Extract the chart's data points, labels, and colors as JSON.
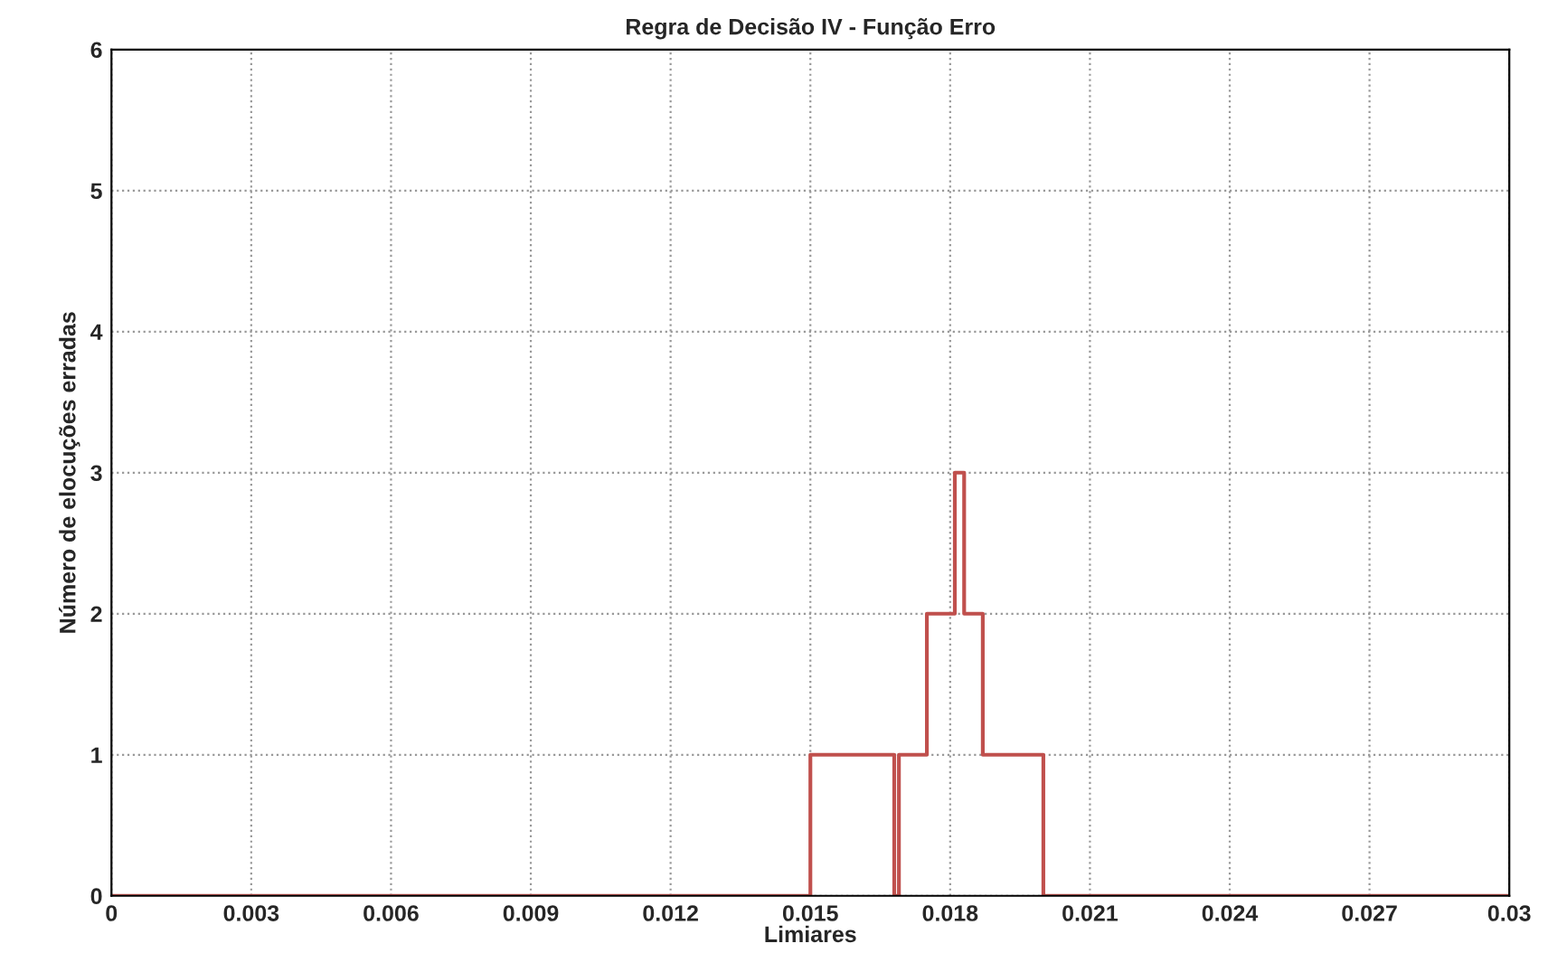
{
  "chart_data": {
    "type": "step",
    "title": "Regra de Decisão IV - Função Erro",
    "xlabel": "Limiares",
    "ylabel": "Número de elocuções erradas",
    "x": [
      0,
      0.015,
      0.0168,
      0.0169,
      0.0175,
      0.0181,
      0.0183,
      0.0187,
      0.02,
      0.03
    ],
    "series": [
      {
        "color": "#c0504d",
        "values": [
          0,
          1,
          0,
          1,
          2,
          3,
          2,
          1,
          0,
          0
        ]
      }
    ],
    "xlim": [
      0,
      0.03
    ],
    "xticks": [
      0,
      0.003,
      0.006,
      0.009,
      0.012,
      0.015,
      0.018,
      0.021,
      0.024,
      0.027,
      0.03
    ],
    "ylim": [
      0,
      6
    ],
    "yticks": [
      0,
      1,
      2,
      3,
      4,
      5,
      6
    ],
    "grid": true,
    "legend": false
  }
}
